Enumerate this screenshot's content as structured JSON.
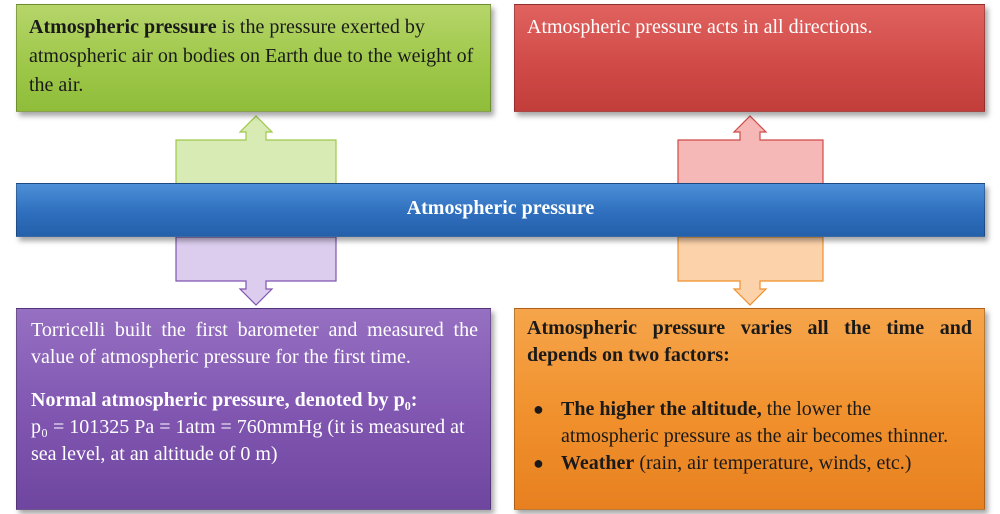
{
  "title": "Atmospheric pressure",
  "definition": {
    "term": "Atmospheric pressure",
    "text": " is the pressure exerted by atmospheric air on bodies on Earth due to the weight of the air."
  },
  "directions": "Atmospheric pressure acts in all directions.",
  "torricelli": {
    "text": "Torricelli built the first barometer and measured the value of atmospheric pressure for the first time.",
    "normal_heading": "Normal atmospheric pressure, denoted by p₀:",
    "normal_text": "p₀ = 101325 Pa = 1atm = 760mmHg (it is measured at sea level, at an altitude of 0 m)"
  },
  "variation": {
    "heading": "Atmospheric pressure varies all the time and depends on two factors:",
    "bullet_glyph": "●",
    "factors": [
      {
        "bold": "The higher the altitude,",
        "text": " the lower the atmospheric pressure as the air becomes thinner."
      },
      {
        "bold": "Weather",
        "text": " (rain, air temperature, winds, etc.)"
      }
    ]
  },
  "colors": {
    "green": "#9fc84a",
    "red": "#d04b48",
    "blue": "#2f6fbe",
    "purple": "#7f55b0",
    "orange": "#f0902c",
    "arrow_green": "#d8ebb5",
    "arrow_red": "#f5b8b7",
    "arrow_purple": "#dccdee",
    "arrow_orange": "#fcd2aa"
  }
}
